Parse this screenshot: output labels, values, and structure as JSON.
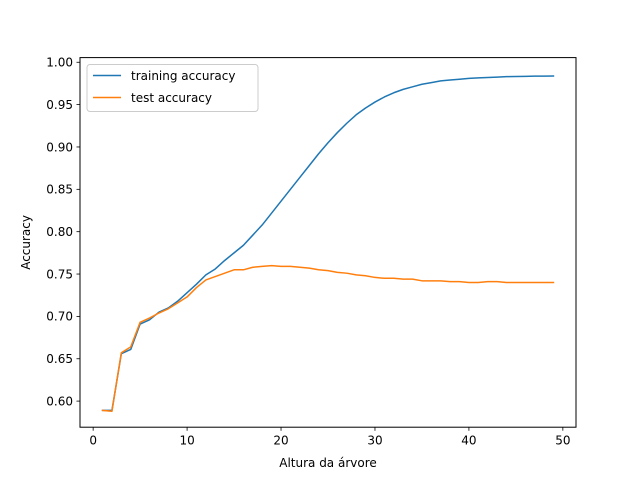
{
  "chart_data": {
    "type": "line",
    "title": "",
    "xlabel": "Altura da árvore",
    "ylabel": "Accuracy",
    "xlim": [
      -1.4,
      51.4
    ],
    "ylim": [
      0.5692,
      1.0055
    ],
    "xticks": [
      0,
      10,
      20,
      30,
      40,
      50
    ],
    "xtick_labels": [
      "0",
      "10",
      "20",
      "30",
      "40",
      "50"
    ],
    "yticks": [
      0.6,
      0.65,
      0.7,
      0.75,
      0.8,
      0.85,
      0.9,
      0.95,
      1.0
    ],
    "ytick_labels": [
      "0.60",
      "0.65",
      "0.70",
      "0.75",
      "0.80",
      "0.85",
      "0.90",
      "0.95",
      "1.00"
    ],
    "grid": false,
    "legend_position": "top-left",
    "x": [
      1,
      2,
      3,
      4,
      5,
      6,
      7,
      8,
      9,
      10,
      11,
      12,
      13,
      14,
      15,
      16,
      17,
      18,
      19,
      20,
      21,
      22,
      23,
      24,
      25,
      26,
      27,
      28,
      29,
      30,
      31,
      32,
      33,
      34,
      35,
      36,
      37,
      38,
      39,
      40,
      41,
      42,
      43,
      44,
      45,
      46,
      47,
      48,
      49
    ],
    "series": [
      {
        "name": "training accuracy",
        "color": "#1f77b4",
        "values": [
          0.589,
          0.589,
          0.656,
          0.661,
          0.691,
          0.696,
          0.705,
          0.71,
          0.718,
          0.728,
          0.738,
          0.749,
          0.756,
          0.766,
          0.775,
          0.784,
          0.796,
          0.808,
          0.822,
          0.836,
          0.85,
          0.864,
          0.878,
          0.892,
          0.905,
          0.917,
          0.928,
          0.938,
          0.946,
          0.953,
          0.959,
          0.964,
          0.968,
          0.971,
          0.974,
          0.976,
          0.978,
          0.979,
          0.98,
          0.981,
          0.9815,
          0.982,
          0.9825,
          0.983,
          0.9832,
          0.9834,
          0.9836,
          0.9837,
          0.9838
        ]
      },
      {
        "name": "test accuracy",
        "color": "#ff7f0e",
        "values": [
          0.589,
          0.588,
          0.657,
          0.664,
          0.693,
          0.698,
          0.704,
          0.709,
          0.716,
          0.723,
          0.734,
          0.743,
          0.747,
          0.751,
          0.755,
          0.755,
          0.758,
          0.759,
          0.76,
          0.759,
          0.759,
          0.758,
          0.757,
          0.755,
          0.754,
          0.752,
          0.751,
          0.749,
          0.748,
          0.746,
          0.745,
          0.745,
          0.744,
          0.744,
          0.742,
          0.742,
          0.742,
          0.741,
          0.741,
          0.74,
          0.74,
          0.741,
          0.741,
          0.74,
          0.74,
          0.74,
          0.74,
          0.74,
          0.74
        ]
      }
    ]
  }
}
